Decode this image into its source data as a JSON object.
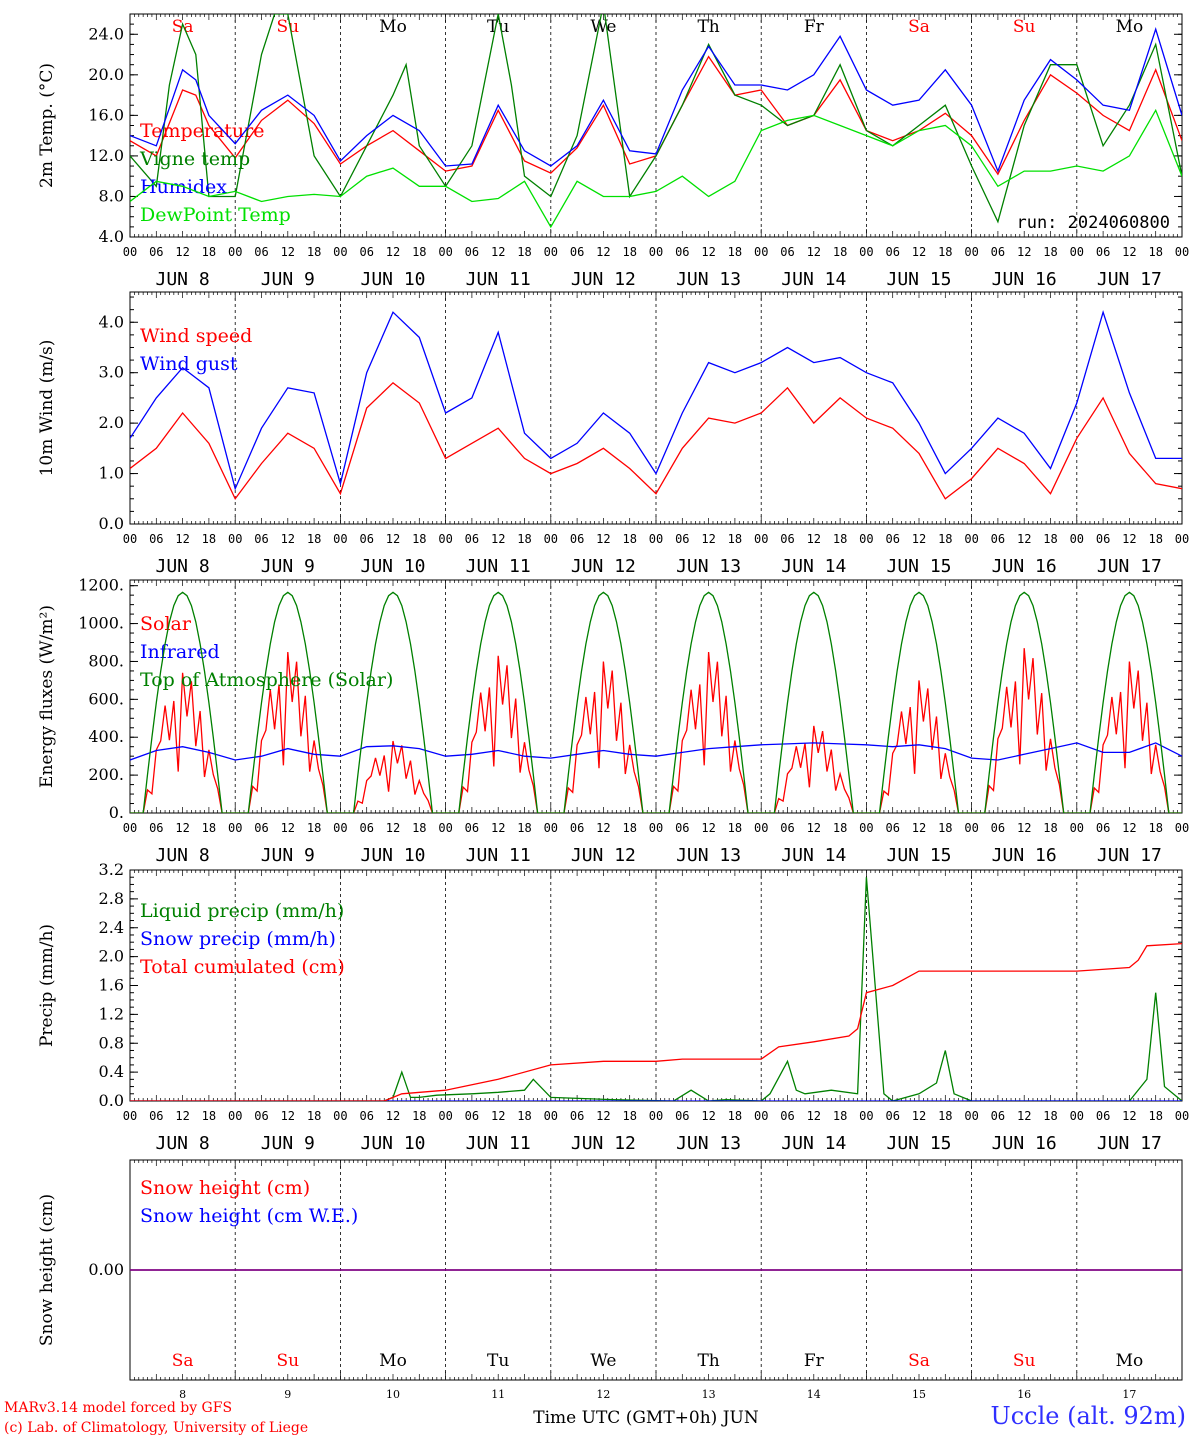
{
  "footer": {
    "credit_line1": "MARv3.14 model forced by GFS",
    "credit_line2": "(c) Lab. of Climatology, University of Liege",
    "station": "Uccle (alt. 92m)",
    "xlabel": "Time UTC (GMT+0h) JUN"
  },
  "days": {
    "dates": [
      "JUN  8",
      "JUN  9",
      "JUN 10",
      "JUN 11",
      "JUN 12",
      "JUN 13",
      "JUN 14",
      "JUN 15",
      "JUN 16",
      "JUN 17"
    ],
    "numbers": [
      "8",
      "9",
      "10",
      "11",
      "12",
      "13",
      "14",
      "15",
      "16",
      "17"
    ],
    "weekdays": [
      "Sa",
      "Su",
      "Mo",
      "Tu",
      "We",
      "Th",
      "Fr",
      "Sa",
      "Su",
      "Mo"
    ],
    "weekday_colors": [
      "#ff0000",
      "#ff0000",
      "#000000",
      "#000000",
      "#000000",
      "#000000",
      "#000000",
      "#ff0000",
      "#ff0000",
      "#000000"
    ],
    "hour_ticks": [
      "00",
      "06",
      "12",
      "18"
    ],
    "final_hour": "00"
  },
  "colors": {
    "red": "#ff0000",
    "green": "#008000",
    "blue": "#0000ff",
    "lightgreen": "#00e000",
    "purple": "#800080"
  },
  "chart_data": [
    {
      "type": "line",
      "ylabel": "2m Temp. (°C)",
      "ylim": [
        4,
        26
      ],
      "yticks": [
        4,
        8,
        12,
        16,
        20,
        24
      ],
      "ytick_labels": [
        "4.0",
        "8.0",
        "12.0",
        "16.0",
        "20.0",
        "24.0"
      ],
      "x_hours": [
        0,
        240
      ],
      "annotation": "run: 2024060800",
      "series": [
        {
          "name": "Temperature",
          "color": "#ff0000",
          "x": [
            0,
            6,
            12,
            15,
            18,
            24,
            30,
            36,
            42,
            48,
            54,
            60,
            66,
            72,
            78,
            84,
            90,
            96,
            102,
            108,
            114,
            120,
            126,
            132,
            138,
            144,
            150,
            156,
            162,
            168,
            174,
            180,
            186,
            192,
            198,
            204,
            210,
            216,
            222,
            228,
            234,
            240
          ],
          "values": [
            13.5,
            12,
            18.5,
            18,
            15,
            11.8,
            15.5,
            17.5,
            15.2,
            11.2,
            13,
            14.5,
            12.5,
            10.5,
            11,
            16.5,
            11.5,
            10.3,
            12.8,
            17,
            11.2,
            12,
            17,
            21.8,
            18,
            18.5,
            15,
            16,
            19.5,
            14.5,
            13.5,
            14.5,
            16.2,
            14,
            10.2,
            15.5,
            20,
            18.2,
            16,
            14.5,
            20.5,
            13.5
          ]
        },
        {
          "name": "Vigne temp",
          "color": "#008000",
          "x": [
            0,
            6,
            9,
            12,
            15,
            18,
            24,
            30,
            33,
            36,
            42,
            48,
            54,
            60,
            63,
            66,
            72,
            78,
            84,
            87,
            90,
            96,
            102,
            108,
            114,
            120,
            126,
            132,
            138,
            144,
            150,
            156,
            162,
            168,
            174,
            180,
            186,
            192,
            198,
            204,
            210,
            216,
            222,
            228,
            234,
            240
          ],
          "values": [
            12,
            9,
            19,
            25,
            22,
            8,
            8,
            22,
            26,
            26,
            12,
            8,
            13,
            18,
            21,
            13,
            9,
            13,
            26,
            19,
            10,
            8,
            14,
            27,
            8,
            12,
            17,
            23,
            18,
            17,
            15,
            16,
            21,
            14.5,
            13,
            15,
            17,
            11,
            5.5,
            15,
            21,
            21,
            13,
            17,
            23,
            10
          ]
        },
        {
          "name": "Humidex",
          "color": "#0000ff",
          "x": [
            0,
            6,
            12,
            15,
            18,
            24,
            30,
            36,
            42,
            48,
            54,
            60,
            66,
            72,
            78,
            84,
            90,
            96,
            102,
            108,
            114,
            120,
            126,
            132,
            138,
            144,
            150,
            156,
            162,
            168,
            174,
            180,
            186,
            192,
            198,
            204,
            210,
            216,
            222,
            228,
            234,
            240
          ],
          "values": [
            14,
            13,
            20.5,
            19.5,
            16,
            13.2,
            16.5,
            18,
            16,
            11.5,
            14,
            16,
            14.5,
            11,
            11.2,
            17,
            12.5,
            11,
            13,
            17.5,
            12.5,
            12.2,
            18.5,
            22.8,
            19,
            19,
            18.5,
            20,
            23.8,
            18.5,
            17,
            17.5,
            20.5,
            17,
            10.5,
            17.5,
            21.5,
            19.5,
            17,
            16.5,
            24.5,
            16
          ]
        },
        {
          "name": "DewPoint Temp",
          "color": "#00e000",
          "x": [
            0,
            6,
            12,
            18,
            24,
            30,
            36,
            42,
            48,
            54,
            60,
            66,
            72,
            78,
            84,
            90,
            96,
            102,
            108,
            114,
            120,
            126,
            132,
            138,
            144,
            150,
            156,
            162,
            168,
            174,
            180,
            186,
            192,
            198,
            204,
            210,
            216,
            222,
            228,
            234,
            240
          ],
          "values": [
            7.5,
            9.5,
            9,
            8,
            8.5,
            7.5,
            8,
            8.2,
            8,
            10,
            10.8,
            9,
            9,
            7.5,
            7.8,
            9.5,
            5,
            9.5,
            8,
            8,
            8.5,
            10,
            8,
            9.5,
            14.5,
            15.5,
            16,
            15,
            14,
            13,
            14.5,
            15,
            13,
            9,
            10.5,
            10.5,
            11,
            10.5,
            12,
            16.5,
            10
          ]
        }
      ]
    },
    {
      "type": "line",
      "ylabel": "10m Wind (m/s)",
      "ylim": [
        0,
        4.6
      ],
      "yticks": [
        0,
        1,
        2,
        3,
        4
      ],
      "ytick_labels": [
        "0.0",
        "1.0",
        "2.0",
        "3.0",
        "4.0"
      ],
      "x_hours": [
        0,
        240
      ],
      "series": [
        {
          "name": "Wind speed",
          "color": "#ff0000",
          "x": [
            0,
            6,
            12,
            18,
            24,
            30,
            36,
            42,
            48,
            54,
            60,
            66,
            72,
            78,
            84,
            90,
            96,
            102,
            108,
            114,
            120,
            126,
            132,
            138,
            144,
            150,
            156,
            162,
            168,
            174,
            180,
            186,
            192,
            198,
            204,
            210,
            216,
            222,
            228,
            234,
            240
          ],
          "values": [
            1.1,
            1.5,
            2.2,
            1.6,
            0.5,
            1.2,
            1.8,
            1.5,
            0.6,
            2.3,
            2.8,
            2.4,
            1.3,
            1.6,
            1.9,
            1.3,
            1.0,
            1.2,
            1.5,
            1.1,
            0.6,
            1.5,
            2.1,
            2.0,
            2.2,
            2.7,
            2.0,
            2.5,
            2.1,
            1.9,
            1.4,
            0.5,
            0.9,
            1.5,
            1.2,
            0.6,
            1.7,
            2.5,
            1.4,
            0.8,
            0.7
          ]
        },
        {
          "name": "Wind gust",
          "color": "#0000ff",
          "x": [
            0,
            6,
            12,
            18,
            24,
            30,
            36,
            42,
            48,
            54,
            60,
            66,
            72,
            78,
            84,
            90,
            96,
            102,
            108,
            114,
            120,
            126,
            132,
            138,
            144,
            150,
            156,
            162,
            168,
            174,
            180,
            186,
            192,
            198,
            204,
            210,
            216,
            222,
            228,
            234,
            240
          ],
          "values": [
            1.7,
            2.5,
            3.1,
            2.7,
            0.7,
            1.9,
            2.7,
            2.6,
            0.8,
            3.0,
            4.2,
            3.7,
            2.2,
            2.5,
            3.8,
            1.8,
            1.3,
            1.6,
            2.2,
            1.8,
            1.0,
            2.2,
            3.2,
            3.0,
            3.2,
            3.5,
            3.2,
            3.3,
            3.0,
            2.8,
            2.0,
            1.0,
            1.5,
            2.1,
            1.8,
            1.1,
            2.4,
            4.2,
            2.6,
            1.3,
            1.3
          ]
        }
      ]
    },
    {
      "type": "line",
      "ylabel": "Energy fluxes (W/m²)",
      "ylim": [
        0,
        1230
      ],
      "yticks": [
        0,
        200,
        400,
        600,
        800,
        1000,
        1200
      ],
      "ytick_labels": [
        "0.",
        "200.",
        "400.",
        "600.",
        "800.",
        "1000.",
        "1200."
      ],
      "x_hours": [
        0,
        240
      ],
      "series": [
        {
          "name": "Solar",
          "color": "#ff0000",
          "day_peaks": [
            740,
            850,
            380,
            830,
            800,
            850,
            460,
            700,
            870,
            800
          ]
        },
        {
          "name": "Infrared",
          "color": "#0000ff",
          "x": [
            0,
            6,
            12,
            18,
            24,
            30,
            36,
            42,
            48,
            54,
            60,
            66,
            72,
            78,
            84,
            90,
            96,
            102,
            108,
            114,
            120,
            126,
            132,
            138,
            144,
            150,
            156,
            162,
            168,
            174,
            180,
            186,
            192,
            198,
            204,
            210,
            216,
            222,
            228,
            234,
            240
          ],
          "values": [
            280,
            330,
            350,
            320,
            280,
            300,
            340,
            310,
            300,
            350,
            355,
            340,
            300,
            310,
            330,
            300,
            290,
            310,
            330,
            310,
            300,
            320,
            340,
            350,
            360,
            365,
            370,
            365,
            360,
            350,
            360,
            340,
            290,
            280,
            310,
            340,
            370,
            320,
            320,
            370,
            300
          ]
        },
        {
          "name": "Top of Atmosphere (Solar)",
          "color": "#008000",
          "peak": 1165
        }
      ]
    },
    {
      "type": "line",
      "ylabel": "Precip (mm/h)",
      "ylim": [
        0,
        3.2
      ],
      "yticks": [
        0,
        0.4,
        0.8,
        1.2,
        1.6,
        2.0,
        2.4,
        2.8,
        3.2
      ],
      "ytick_labels": [
        "0.0",
        "0.4",
        "0.8",
        "1.2",
        "1.6",
        "2.0",
        "2.4",
        "2.8",
        "3.2"
      ],
      "x_hours": [
        0,
        240
      ],
      "series": [
        {
          "name": "Liquid precip (mm/h)",
          "color": "#008000",
          "x": [
            0,
            58,
            60,
            62,
            64,
            66,
            70,
            78,
            84,
            90,
            92,
            96,
            110,
            124,
            128,
            132,
            136,
            144,
            146,
            150,
            152,
            154,
            160,
            166,
            168,
            172,
            174,
            180,
            184,
            186,
            188,
            192,
            216,
            228,
            232,
            234,
            236,
            240
          ],
          "values": [
            0,
            0,
            0.05,
            0.4,
            0.05,
            0.05,
            0.08,
            0.1,
            0.12,
            0.15,
            0.3,
            0.05,
            0.02,
            0,
            0.15,
            0,
            0.02,
            0,
            0.1,
            0.55,
            0.15,
            0.1,
            0.15,
            0.1,
            3.1,
            0.1,
            0,
            0.1,
            0.25,
            0.7,
            0.1,
            0,
            0,
            0,
            0.3,
            1.5,
            0.2,
            0
          ]
        },
        {
          "name": "Snow precip (mm/h)",
          "color": "#0000ff",
          "x": [
            0,
            240
          ],
          "values": [
            0,
            0
          ]
        },
        {
          "name": "Total cumulated (cm)",
          "color": "#ff0000",
          "x": [
            0,
            58,
            62,
            72,
            84,
            96,
            108,
            120,
            126,
            132,
            138,
            144,
            148,
            156,
            164,
            166,
            168,
            174,
            180,
            186,
            192,
            216,
            228,
            230,
            232,
            240
          ],
          "values": [
            0,
            0,
            0.1,
            0.15,
            0.3,
            0.5,
            0.55,
            0.55,
            0.58,
            0.58,
            0.58,
            0.58,
            0.75,
            0.82,
            0.9,
            1.0,
            1.5,
            1.6,
            1.8,
            1.8,
            1.8,
            1.8,
            1.85,
            1.95,
            2.15,
            2.18
          ]
        }
      ]
    },
    {
      "type": "line",
      "ylabel": "Snow height (cm)",
      "ylim": [
        -1,
        1
      ],
      "yticks": [
        0
      ],
      "ytick_labels": [
        "0.00"
      ],
      "x_hours": [
        0,
        240
      ],
      "series": [
        {
          "name": "Snow height (cm)",
          "color": "#ff0000",
          "x": [
            0,
            240
          ],
          "values": [
            0,
            0
          ]
        },
        {
          "name": "Snow height (cm W.E.)",
          "color": "#0000ff",
          "x": [
            0,
            240
          ],
          "values": [
            0,
            0
          ]
        }
      ]
    }
  ]
}
